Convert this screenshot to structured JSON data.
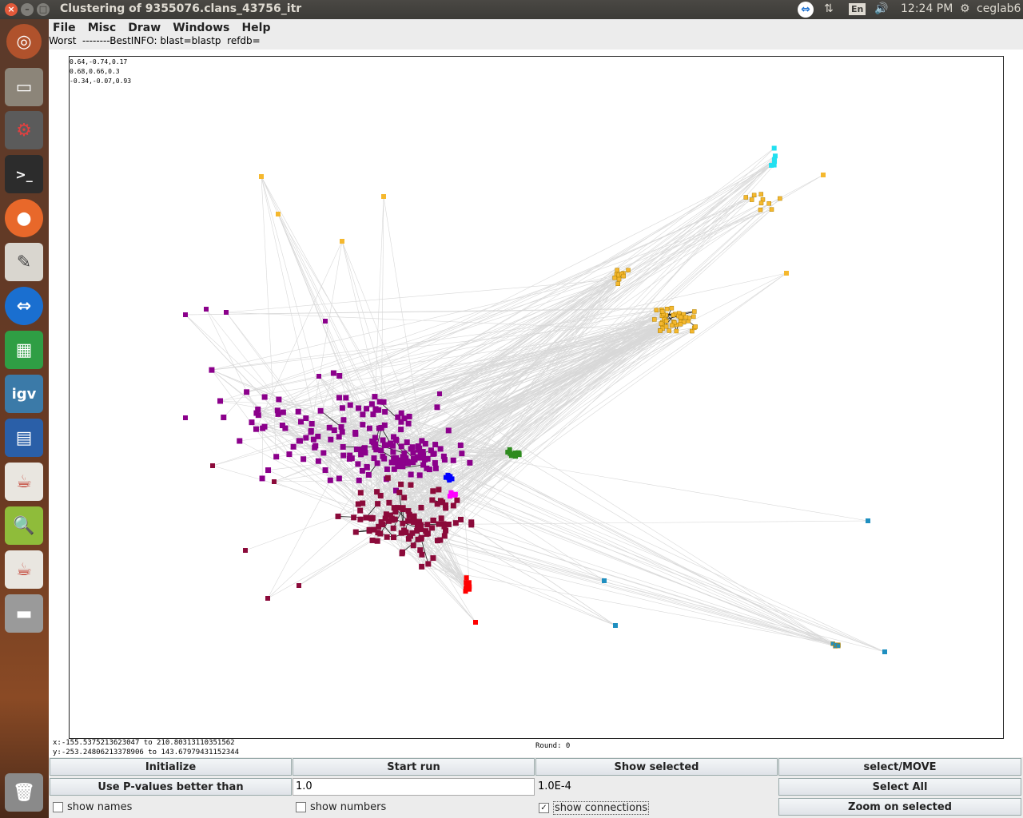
{
  "window": {
    "title": "Clustering of 9355076.clans_43756_itr"
  },
  "tray": {
    "lang": "En",
    "time": "12:24 PM",
    "user": "ceglab6"
  },
  "menu": [
    "File",
    "Misc",
    "Draw",
    "Windows",
    "Help"
  ],
  "info_line": "Worst  --------BestINFO: blast=blastp  refdb=",
  "rotation": [
    "0.64,-0.74,0.17",
    "0.68,0.66,0.3",
    "-0.34,-0.07,0.93"
  ],
  "range": {
    "x": "x:-155.5375213623047 to 210.80313110351562",
    "y": "y:-253.24806213378906 to 143.67979431152344"
  },
  "round": "Round: 0",
  "controls": {
    "initialize": "Initialize",
    "start_run": "Start run",
    "show_selected": "Show selected",
    "select_move": "select/MOVE",
    "use_pvalues": "Use P-values better than",
    "pvalue_field": "1.0",
    "pvalue_current": "1.0E-4",
    "select_all": "Select All",
    "show_names": "show names",
    "show_numbers": "show numbers",
    "show_connections": "show connections",
    "zoom_selected": "Zoom on selected"
  },
  "clusters": [
    {
      "name": "purple",
      "color": "#8b008b"
    },
    {
      "name": "crimson",
      "color": "#8b0a3a"
    },
    {
      "name": "orange",
      "color": "#f5b82e"
    },
    {
      "name": "cyan",
      "color": "#22e0f0"
    },
    {
      "name": "teal",
      "color": "#1f8fc0"
    },
    {
      "name": "green",
      "color": "#2e8b1e"
    },
    {
      "name": "blue",
      "color": "#0000ff"
    },
    {
      "name": "magenta",
      "color": "#ff00ff"
    },
    {
      "name": "red",
      "color": "#ff0000"
    }
  ]
}
